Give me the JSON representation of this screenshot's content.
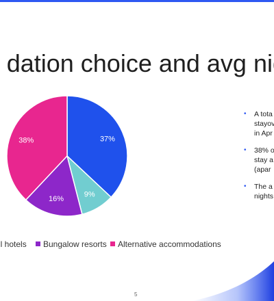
{
  "slide": {
    "title": "dation choice and avg nig",
    "page_number": "5",
    "accent_color": "#2f59f2"
  },
  "bullets": [
    {
      "lines": [
        "A tota",
        "stayov",
        "in Apr"
      ]
    },
    {
      "lines": [
        "38% o",
        "stay a",
        "(apar"
      ]
    },
    {
      "lines": [
        "The a",
        "nights"
      ]
    }
  ],
  "chart_data": {
    "type": "pie",
    "title": "",
    "slices": [
      {
        "name": "",
        "value": 37,
        "label": "37%",
        "color": "#1f51ec"
      },
      {
        "name": "",
        "value": 9,
        "label": "9%",
        "color": "#71cdd0"
      },
      {
        "name": "Bungalow resorts",
        "value": 16,
        "label": "16%",
        "color": "#8d27c9"
      },
      {
        "name": "Alternative accommodations",
        "value": 38,
        "label": "38%",
        "color": "#e8268f"
      }
    ],
    "legend_position": "bottom",
    "legend": [
      {
        "label": "ll hotels",
        "color": "#71cdd0"
      },
      {
        "label": "Bungalow resorts",
        "color": "#8d27c9"
      },
      {
        "label": "Alternative accommodations",
        "color": "#e8268f"
      }
    ]
  }
}
